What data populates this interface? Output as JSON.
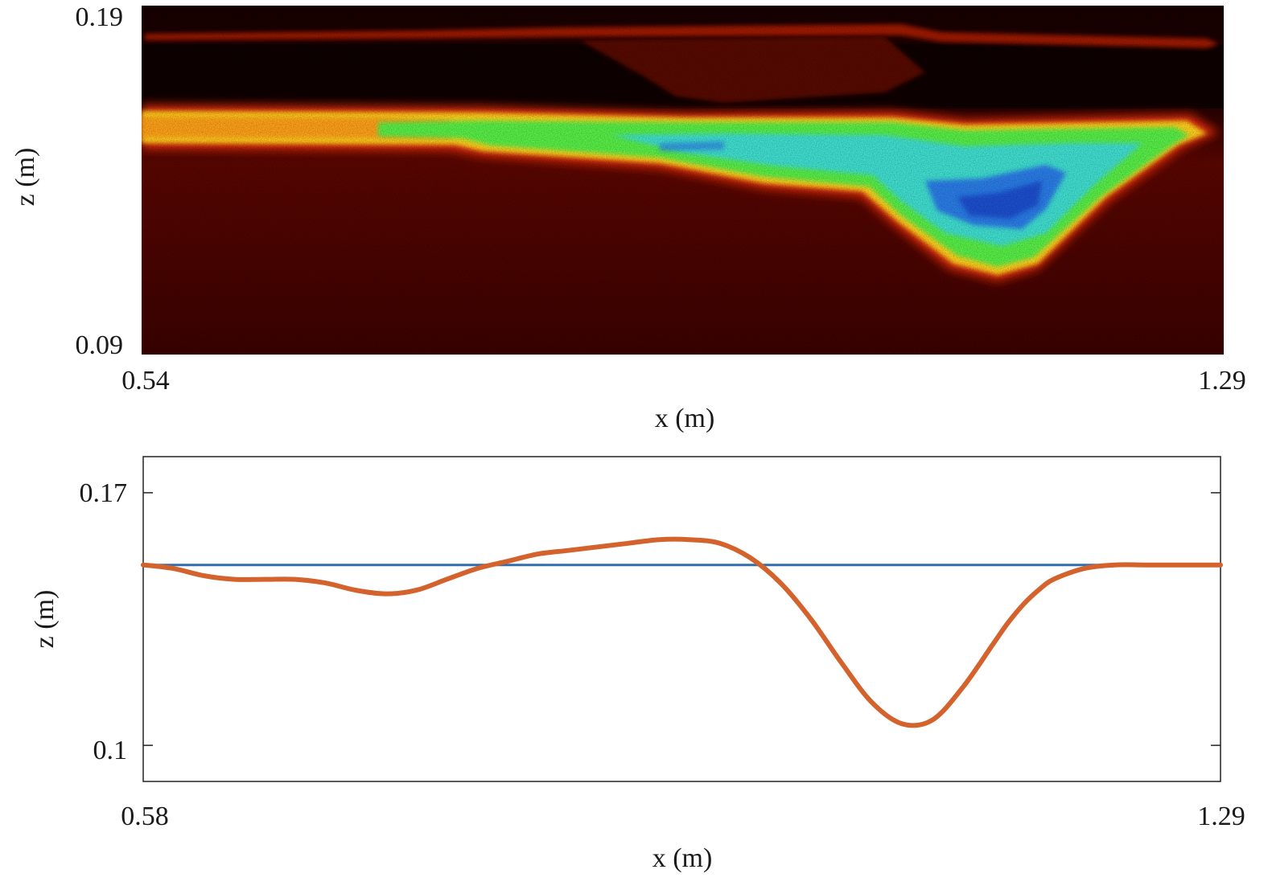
{
  "chart_data": [
    {
      "type": "heatmap",
      "title": "",
      "xlabel": "x (m)",
      "ylabel": "z (m)",
      "xlim": [
        0.54,
        1.29
      ],
      "ylim": [
        0.09,
        0.19
      ],
      "x_tick_labels": [
        "0.54",
        "1.29"
      ],
      "y_tick_labels": [
        "0.09",
        "0.19"
      ],
      "colormap": "black-red-yellow-green-cyan-blue",
      "grid": false,
      "legend": "none"
    },
    {
      "type": "line",
      "title": "",
      "xlabel": "x (m)",
      "ylabel": "z (m)",
      "xlim": [
        0.58,
        1.29
      ],
      "ylim": [
        0.09,
        0.18
      ],
      "x_tick_labels": [
        "0.58",
        "1.29"
      ],
      "y_tick_labels": [
        "0.17",
        "0.1"
      ],
      "y_ticks": [
        0.17,
        0.1
      ],
      "grid": false,
      "legend": "none",
      "series": [
        {
          "color": "#2f6fb0",
          "x": [
            0.58,
            1.29
          ],
          "y": [
            0.15,
            0.15
          ]
        },
        {
          "color": "#d4622c",
          "x": [
            0.58,
            0.6,
            0.62,
            0.64,
            0.66,
            0.68,
            0.7,
            0.72,
            0.74,
            0.76,
            0.78,
            0.8,
            0.82,
            0.84,
            0.86,
            0.88,
            0.9,
            0.92,
            0.94,
            0.96,
            0.98,
            1.0,
            1.02,
            1.04,
            1.06,
            1.08,
            1.1,
            1.12,
            1.14,
            1.15,
            1.16,
            1.17,
            1.18,
            1.2,
            1.22,
            1.24,
            1.26,
            1.29
          ],
          "y": [
            0.15,
            0.149,
            0.147,
            0.146,
            0.146,
            0.146,
            0.145,
            0.143,
            0.142,
            0.143,
            0.146,
            0.149,
            0.151,
            0.153,
            0.154,
            0.155,
            0.156,
            0.157,
            0.157,
            0.156,
            0.152,
            0.145,
            0.135,
            0.123,
            0.112,
            0.106,
            0.107,
            0.116,
            0.128,
            0.134,
            0.139,
            0.143,
            0.146,
            0.149,
            0.15,
            0.15,
            0.15,
            0.15
          ]
        }
      ]
    }
  ]
}
